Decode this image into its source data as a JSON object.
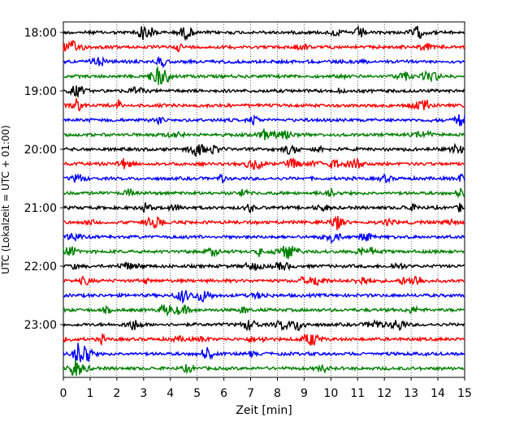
{
  "chart_data": {
    "type": "line",
    "title": "",
    "xlabel": "Zeit  [min]",
    "ylabel": "UTC (Lokalzeit = UTC + 01:00)",
    "xlim": [
      0,
      15
    ],
    "x_ticks": [
      "0",
      "1",
      "2",
      "3",
      "4",
      "5",
      "6",
      "7",
      "8",
      "9",
      "10",
      "11",
      "12",
      "13",
      "14",
      "15"
    ],
    "y_ticks": [
      "18:00",
      "19:00",
      "20:00",
      "21:00",
      "22:00",
      "23:00"
    ],
    "grid": "vertical dotted at each minute",
    "traces_per_hour": 4,
    "trace_interval_min": 15,
    "trace_start": "18:00",
    "trace_count": 24,
    "trace_colors": [
      "#000000",
      "#ff0000",
      "#0000ff",
      "#008000"
    ]
  }
}
